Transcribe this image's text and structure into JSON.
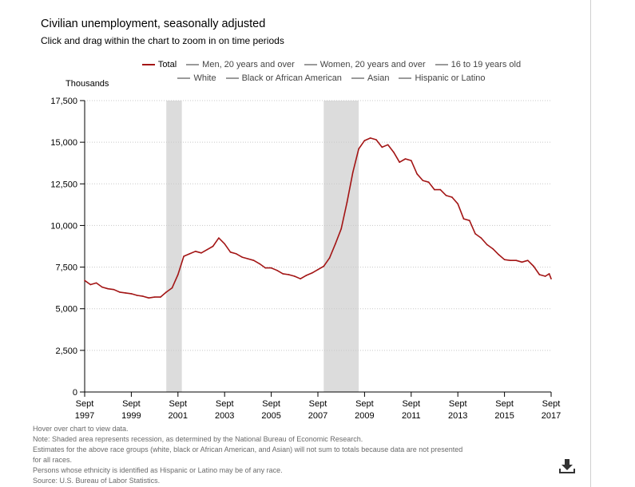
{
  "title": "Civilian unemployment, seasonally adjusted",
  "subtitle": "Click and drag within the chart to zoom in on time periods",
  "legend": [
    [
      "Total",
      "Men, 20 years and over",
      "Women, 20 years and over",
      "16 to 19 years old"
    ],
    [
      "White",
      "Black or African American",
      "Asian",
      "Hispanic or Latino"
    ]
  ],
  "notes": [
    "Hover over chart to view data.",
    "Note: Shaded area represents recession, as determined by the National Bureau of Economic Research.",
    "Estimates for the above race groups (white, black or African American, and Asian) will not sum to totals because data are not presented",
    "for all races.",
    "Persons whose ethnicity is identified as Hispanic or Latino may be of any race.",
    "Source: U.S. Bureau of Labor Statistics."
  ],
  "icons": {
    "download": "download-icon"
  },
  "colors": {
    "series": "#a31515",
    "inactive": "#9a9a9a",
    "recession": "#dcdcdc",
    "grid": "#c8c8c8"
  },
  "chart_data": {
    "type": "line",
    "ylabel": "Thousands",
    "ylim": [
      0,
      17500
    ],
    "yticks": [
      0,
      2500,
      5000,
      7500,
      10000,
      12500,
      15000,
      17500
    ],
    "ytick_labels": [
      "0",
      "2,500",
      "5,000",
      "7,500",
      "10,000",
      "12,500",
      "15,000",
      "17,500"
    ],
    "xlim": [
      "1997-09",
      "2017-09"
    ],
    "xticks": [
      {
        "date": "1997-09",
        "month": "Sept",
        "year": "1997"
      },
      {
        "date": "1999-09",
        "month": "Sept",
        "year": "1999"
      },
      {
        "date": "2001-09",
        "month": "Sept",
        "year": "2001"
      },
      {
        "date": "2003-09",
        "month": "Sept",
        "year": "2003"
      },
      {
        "date": "2005-09",
        "month": "Sept",
        "year": "2005"
      },
      {
        "date": "2007-09",
        "month": "Sept",
        "year": "2007"
      },
      {
        "date": "2009-09",
        "month": "Sept",
        "year": "2009"
      },
      {
        "date": "2011-09",
        "month": "Sept",
        "year": "2011"
      },
      {
        "date": "2013-09",
        "month": "Sept",
        "year": "2013"
      },
      {
        "date": "2015-09",
        "month": "Sept",
        "year": "2015"
      },
      {
        "date": "2017-09",
        "month": "Sept",
        "year": "2017"
      }
    ],
    "recessions": [
      [
        "2001-03",
        "2001-11"
      ],
      [
        "2007-12",
        "2009-06"
      ]
    ],
    "grid": true,
    "series": [
      {
        "name": "Total",
        "points": [
          [
            "1997-09",
            6700
          ],
          [
            "1997-12",
            6450
          ],
          [
            "1998-03",
            6550
          ],
          [
            "1998-06",
            6300
          ],
          [
            "1998-09",
            6200
          ],
          [
            "1998-12",
            6150
          ],
          [
            "1999-03",
            6000
          ],
          [
            "1999-06",
            5950
          ],
          [
            "1999-09",
            5900
          ],
          [
            "1999-12",
            5800
          ],
          [
            "2000-03",
            5750
          ],
          [
            "2000-06",
            5650
          ],
          [
            "2000-09",
            5700
          ],
          [
            "2000-12",
            5700
          ],
          [
            "2001-03",
            6000
          ],
          [
            "2001-06",
            6250
          ],
          [
            "2001-09",
            7050
          ],
          [
            "2001-12",
            8150
          ],
          [
            "2002-03",
            8300
          ],
          [
            "2002-06",
            8450
          ],
          [
            "2002-09",
            8350
          ],
          [
            "2002-12",
            8550
          ],
          [
            "2003-03",
            8750
          ],
          [
            "2003-06",
            9250
          ],
          [
            "2003-09",
            8900
          ],
          [
            "2003-12",
            8400
          ],
          [
            "2004-03",
            8300
          ],
          [
            "2004-06",
            8100
          ],
          [
            "2004-09",
            8000
          ],
          [
            "2004-12",
            7900
          ],
          [
            "2005-03",
            7700
          ],
          [
            "2005-06",
            7450
          ],
          [
            "2005-09",
            7450
          ],
          [
            "2005-12",
            7300
          ],
          [
            "2006-03",
            7100
          ],
          [
            "2006-06",
            7050
          ],
          [
            "2006-09",
            6950
          ],
          [
            "2006-12",
            6800
          ],
          [
            "2007-03",
            7000
          ],
          [
            "2007-06",
            7150
          ],
          [
            "2007-09",
            7350
          ],
          [
            "2007-12",
            7550
          ],
          [
            "2008-03",
            8050
          ],
          [
            "2008-06",
            8900
          ],
          [
            "2008-09",
            9800
          ],
          [
            "2008-12",
            11400
          ],
          [
            "2009-03",
            13200
          ],
          [
            "2009-06",
            14600
          ],
          [
            "2009-09",
            15100
          ],
          [
            "2009-12",
            15250
          ],
          [
            "2010-03",
            15150
          ],
          [
            "2010-06",
            14700
          ],
          [
            "2010-09",
            14850
          ],
          [
            "2010-12",
            14400
          ],
          [
            "2011-03",
            13800
          ],
          [
            "2011-06",
            14000
          ],
          [
            "2011-09",
            13900
          ],
          [
            "2011-12",
            13100
          ],
          [
            "2012-03",
            12700
          ],
          [
            "2012-06",
            12600
          ],
          [
            "2012-09",
            12150
          ],
          [
            "2012-12",
            12150
          ],
          [
            "2013-03",
            11800
          ],
          [
            "2013-06",
            11700
          ],
          [
            "2013-09",
            11300
          ],
          [
            "2013-12",
            10400
          ],
          [
            "2014-03",
            10300
          ],
          [
            "2014-06",
            9500
          ],
          [
            "2014-09",
            9250
          ],
          [
            "2014-12",
            8850
          ],
          [
            "2015-03",
            8600
          ],
          [
            "2015-06",
            8250
          ],
          [
            "2015-09",
            7950
          ],
          [
            "2015-12",
            7900
          ],
          [
            "2016-03",
            7900
          ],
          [
            "2016-06",
            7800
          ],
          [
            "2016-09",
            7900
          ],
          [
            "2016-12",
            7550
          ],
          [
            "2017-03",
            7050
          ],
          [
            "2017-06",
            6950
          ],
          [
            "2017-08",
            7100
          ],
          [
            "2017-09",
            6800
          ]
        ]
      }
    ]
  }
}
